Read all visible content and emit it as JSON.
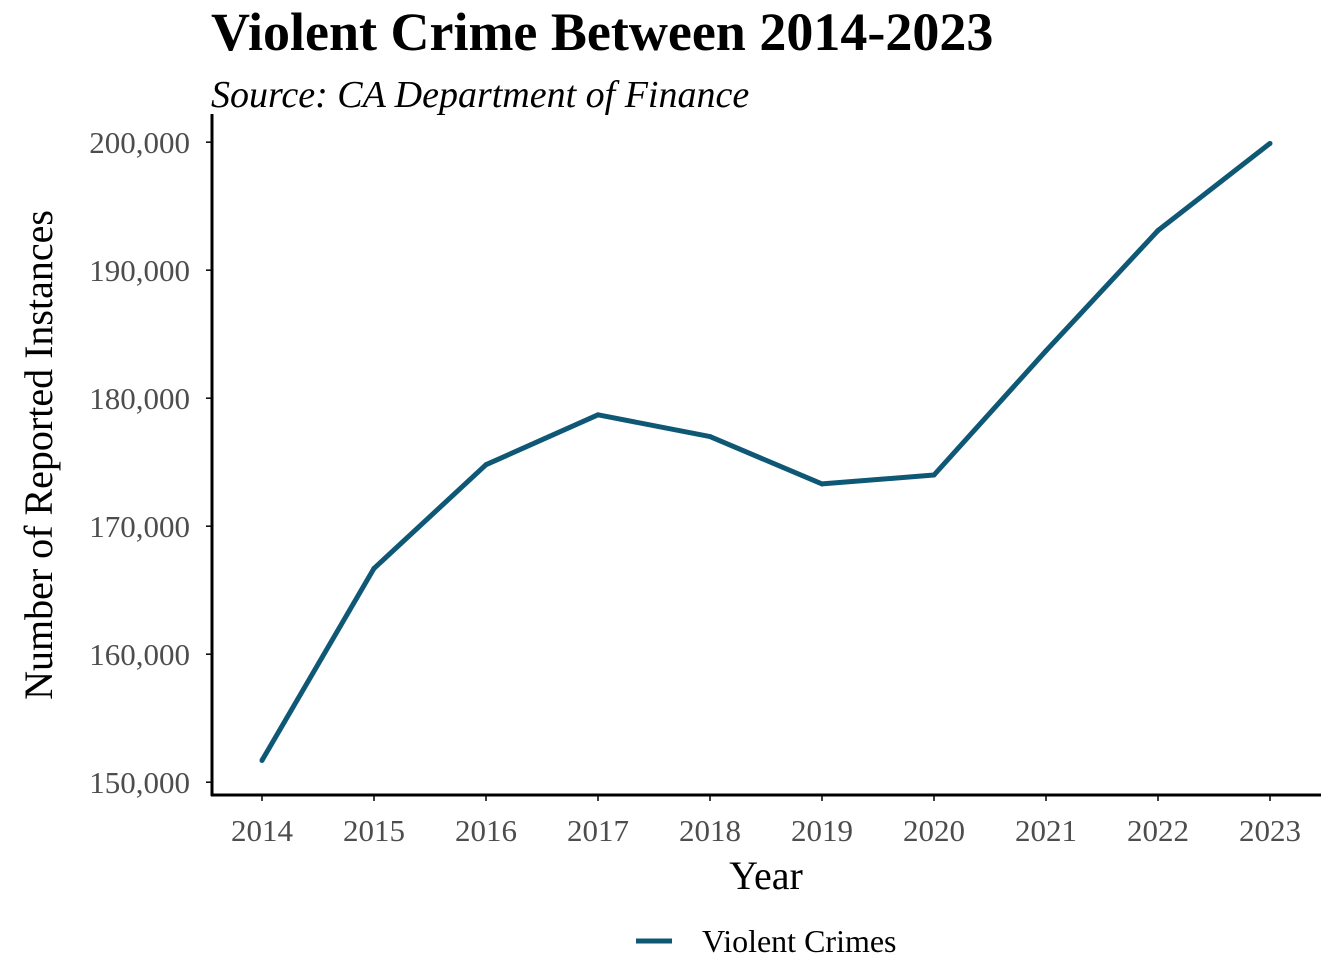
{
  "chart_data": {
    "type": "line",
    "title": "Violent Crime Between 2014-2023",
    "subtitle": "Source: CA Department of Finance",
    "xlabel": "Year",
    "ylabel": "Number of Reported Instances",
    "x": [
      2014,
      2015,
      2016,
      2017,
      2018,
      2019,
      2020,
      2021,
      2022,
      2023
    ],
    "series": [
      {
        "name": "Violent Crimes",
        "color": "#0e5876",
        "values": [
          151700,
          166700,
          174800,
          178700,
          177000,
          173300,
          174000,
          183700,
          193100,
          199900
        ]
      }
    ],
    "x_tick_labels": [
      "2014",
      "2015",
      "2016",
      "2017",
      "2018",
      "2019",
      "2020",
      "2021",
      "2022",
      "2023"
    ],
    "y_ticks": [
      150000,
      160000,
      170000,
      180000,
      190000,
      200000
    ],
    "y_tick_labels": [
      "150,000",
      "160,000",
      "170,000",
      "180,000",
      "190,000",
      "200,000"
    ],
    "ylim": [
      149000,
      202200
    ],
    "grid": false,
    "legend": {
      "position": "bottom"
    }
  }
}
